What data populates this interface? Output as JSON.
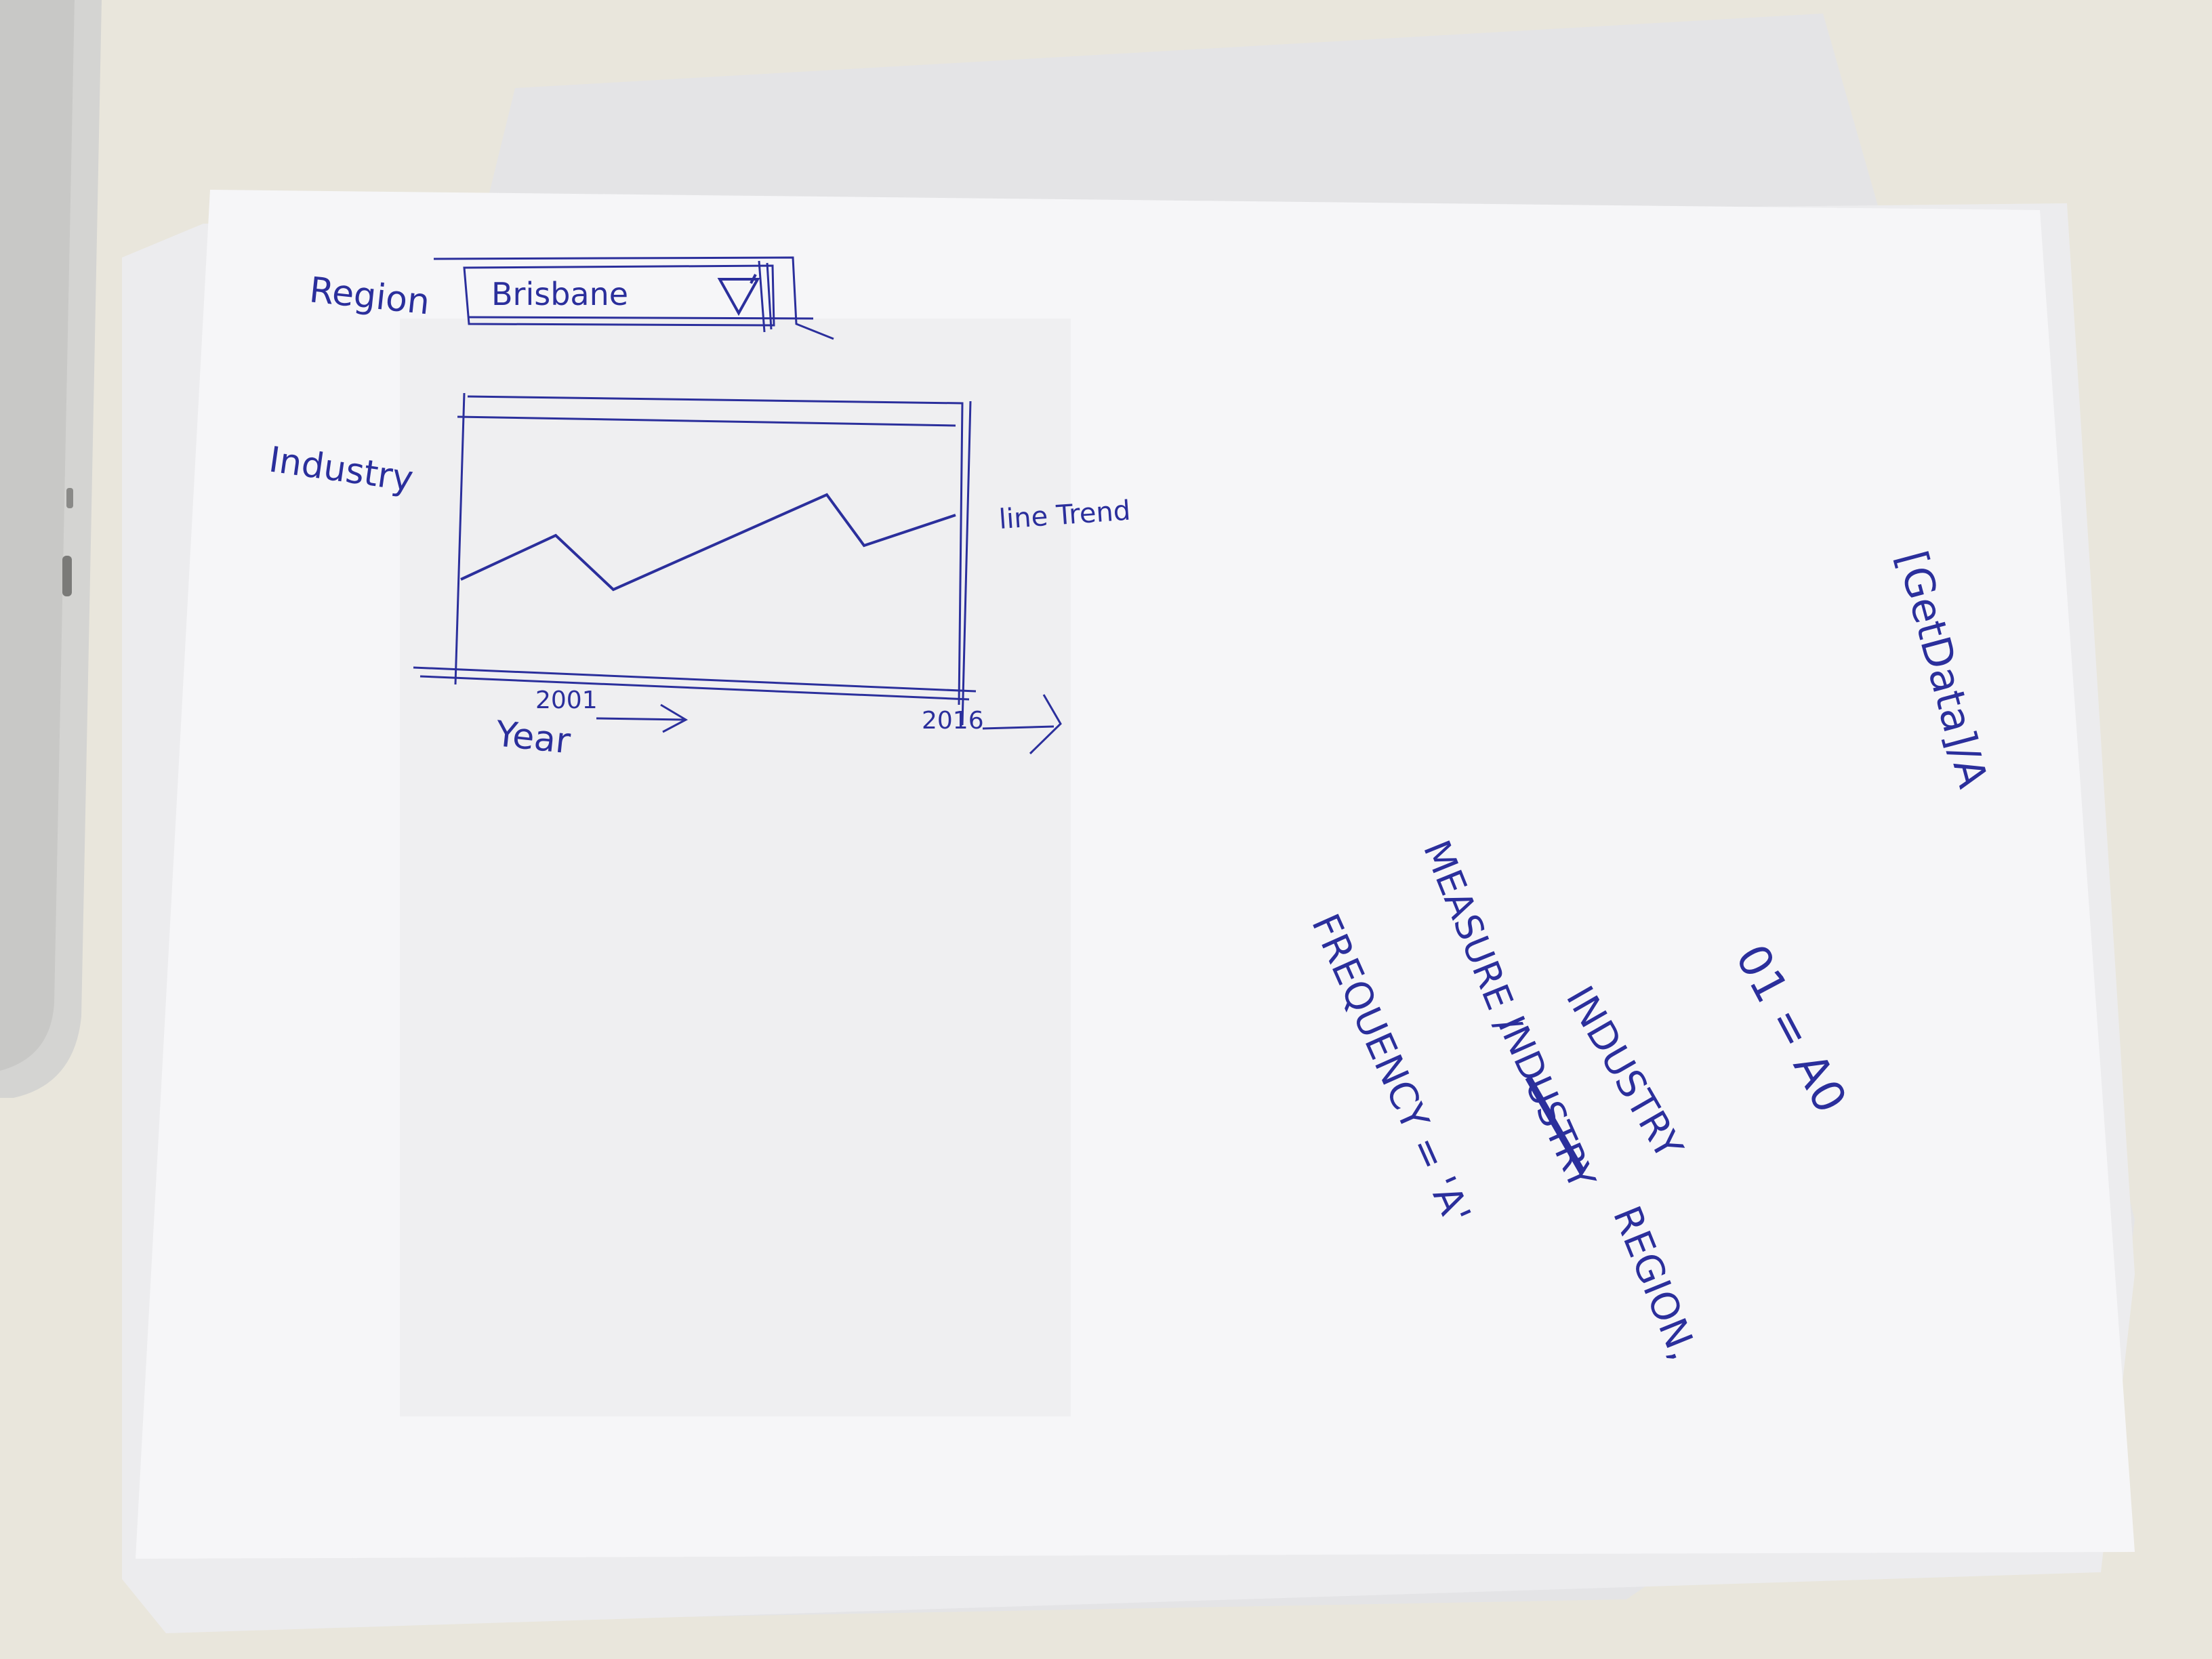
{
  "colors": {
    "desk": "#e9e6dc",
    "paper": "#f6f6f8",
    "paper_shadow": "#dcdcdf",
    "ink": "#2b2f9c",
    "laptop": "#d8d8d6"
  },
  "sketch": {
    "region_label": "Region",
    "region_value": "Brisbane",
    "dropdown_icon": "triangle-down-icon",
    "industry_label": "Industry",
    "chart_annotation": "line Trend",
    "x_start_label": "2001",
    "x_end_label": "2016",
    "x_axis_label": "Year"
  },
  "notes": {
    "call": "[GetData]/A",
    "param_01": "01 = A0",
    "param_industry": "INDUSTRY",
    "param_measure": "MEASURE /",
    "param_industry_struck": "INDUSTRY",
    "param_region": "REGION,",
    "param_frequency": "FREQUENCY = 'A'"
  }
}
